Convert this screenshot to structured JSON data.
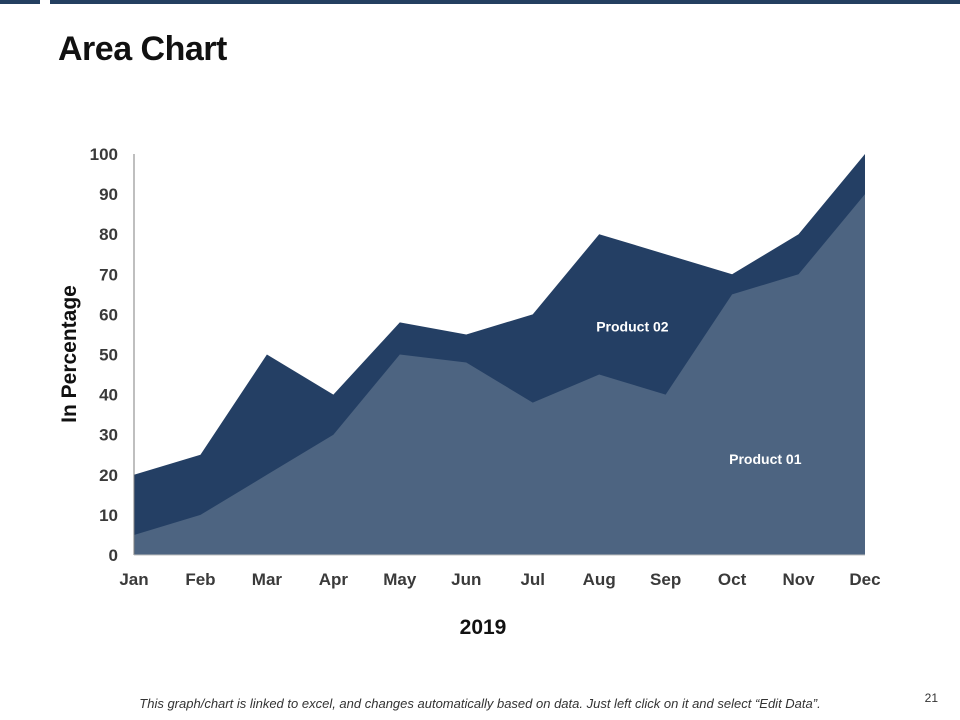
{
  "slide": {
    "title": "Area Chart",
    "footnote": "This graph/chart is linked to excel, and changes automatically based on data.  Just left click on it and select “Edit Data”.",
    "page_number": "21"
  },
  "colors": {
    "accent_bar": "#243f60",
    "product_01": "#4d6481",
    "product_02": "#243f64"
  },
  "chart_data": {
    "type": "area",
    "title": "",
    "xlabel": "2019",
    "ylabel": "In Percentage",
    "categories": [
      "Jan",
      "Feb",
      "Mar",
      "Apr",
      "May",
      "Jun",
      "Jul",
      "Aug",
      "Sep",
      "Oct",
      "Nov",
      "Dec"
    ],
    "ylim": [
      0,
      100
    ],
    "yticks": [
      "0",
      "10",
      "20",
      "30",
      "40",
      "50",
      "60",
      "70",
      "80",
      "90",
      "100"
    ],
    "grid": false,
    "legend": "none",
    "series": [
      {
        "name": "Product 02",
        "values": [
          20,
          25,
          50,
          40,
          58,
          55,
          60,
          80,
          75,
          70,
          80,
          100
        ]
      },
      {
        "name": "Product 01",
        "values": [
          5,
          10,
          20,
          30,
          50,
          48,
          38,
          45,
          40,
          65,
          70,
          90
        ]
      }
    ]
  }
}
